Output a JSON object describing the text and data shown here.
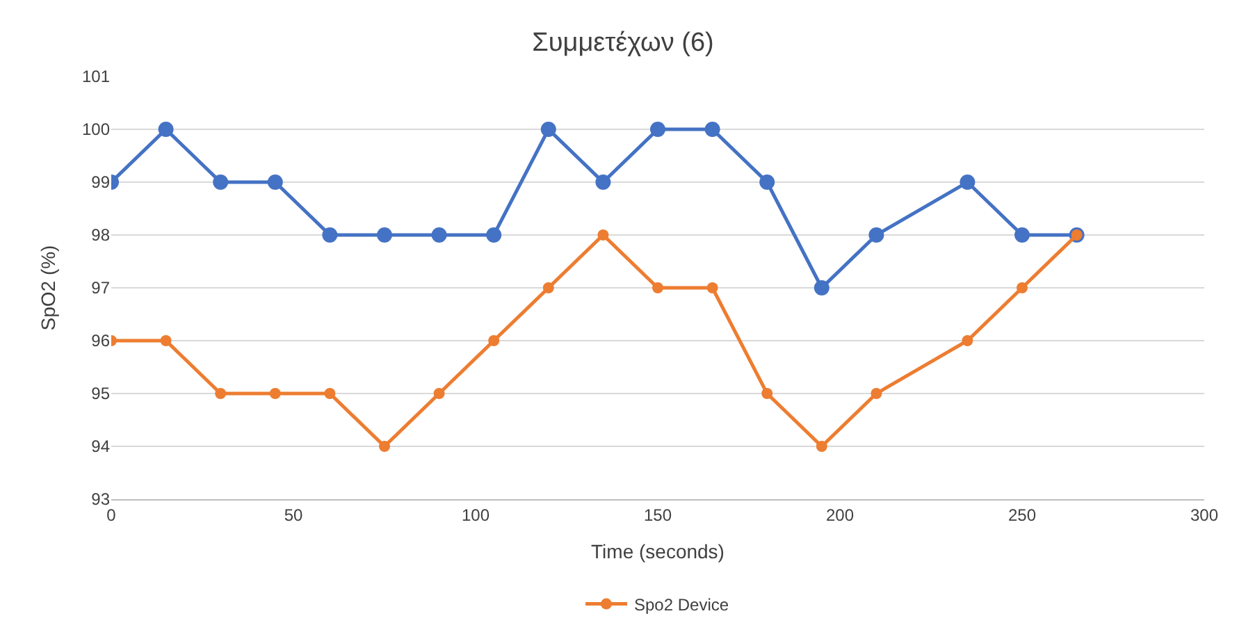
{
  "chart_data": {
    "type": "line",
    "title": "Συμμετέχων (6)",
    "xlabel": "Time (seconds)",
    "ylabel": "SpO2 (%)",
    "x": [
      0,
      15,
      30,
      45,
      60,
      75,
      90,
      105,
      120,
      135,
      150,
      165,
      180,
      195,
      210,
      235,
      250,
      265
    ],
    "series": [
      {
        "color": "#4472c4",
        "values": [
          99,
          100,
          99,
          99,
          98,
          98,
          98,
          98,
          100,
          99,
          100,
          100,
          99,
          97,
          98,
          99,
          98,
          98
        ]
      },
      {
        "name": "Spo2 Device",
        "color": "#ed7d31",
        "values": [
          96,
          96,
          95,
          95,
          95,
          94,
          95,
          96,
          97,
          98,
          97,
          97,
          95,
          94,
          95,
          96,
          97,
          98
        ]
      }
    ],
    "xlim": [
      0,
      300
    ],
    "xticks": [
      0,
      50,
      100,
      150,
      200,
      250,
      300
    ],
    "ylim": [
      93,
      101
    ],
    "yticks": [
      93,
      94,
      95,
      96,
      97,
      98,
      99,
      100,
      101
    ],
    "grid": "y",
    "legend": "bottom",
    "marker": "circle",
    "line_style": "solid"
  }
}
